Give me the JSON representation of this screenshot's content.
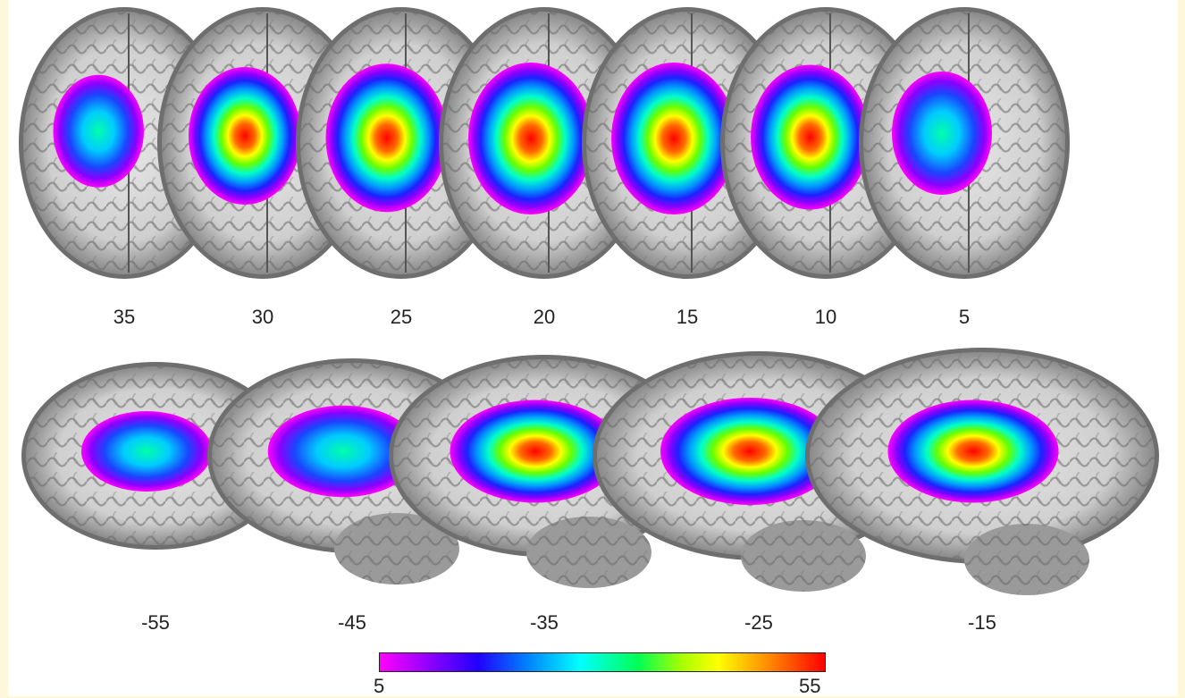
{
  "axial_slices": [
    {
      "label": "35",
      "blob": 0.45
    },
    {
      "label": "30",
      "blob": 0.8
    },
    {
      "label": "25",
      "blob": 0.95
    },
    {
      "label": "20",
      "blob": 1.0
    },
    {
      "label": "15",
      "blob": 1.0
    },
    {
      "label": "10",
      "blob": 0.9
    },
    {
      "label": "5",
      "blob": 0.6
    }
  ],
  "sagittal_slices": [
    {
      "label": "-55",
      "blob": 0.4
    },
    {
      "label": "-45",
      "blob": 0.65
    },
    {
      "label": "-35",
      "blob": 0.9
    },
    {
      "label": "-25",
      "blob": 1.0
    },
    {
      "label": "-15",
      "blob": 0.9
    }
  ],
  "colorbar": {
    "min_label": "5",
    "max_label": "55"
  },
  "colors": {
    "background": "#fdf7dc",
    "panel": "#ffffff"
  }
}
